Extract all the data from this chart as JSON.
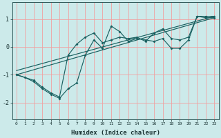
{
  "xlabel": "Humidex (Indice chaleur)",
  "ylabel": "",
  "bg_color": "#cceaea",
  "grid_color": "#f0a0a0",
  "line_color": "#1a6060",
  "xlim": [
    -0.5,
    23.5
  ],
  "ylim": [
    -2.6,
    1.6
  ],
  "yticks": [
    -2,
    -1,
    0,
    1
  ],
  "xticks": [
    0,
    1,
    2,
    3,
    4,
    5,
    6,
    7,
    8,
    9,
    10,
    11,
    12,
    13,
    14,
    15,
    16,
    17,
    18,
    19,
    20,
    21,
    22,
    23
  ],
  "line1_x": [
    0,
    1,
    2,
    3,
    4,
    5,
    6,
    7,
    8,
    9,
    10,
    11,
    12,
    13,
    14,
    15,
    16,
    17,
    18,
    19,
    20,
    21,
    22,
    23
  ],
  "line1_y": [
    -1.0,
    -1.1,
    -1.25,
    -1.5,
    -1.7,
    -1.85,
    -1.5,
    -1.3,
    -0.3,
    0.25,
    -0.05,
    0.75,
    0.55,
    0.2,
    0.3,
    0.25,
    0.2,
    0.3,
    -0.05,
    -0.05,
    0.25,
    1.1,
    1.1,
    1.1
  ],
  "line2_x": [
    0,
    2,
    3,
    4,
    5,
    6,
    7,
    8,
    9,
    10,
    11,
    12,
    13,
    14,
    15,
    16,
    17,
    18,
    19,
    20,
    21,
    22,
    23
  ],
  "line2_y": [
    -1.0,
    -1.2,
    -1.45,
    -1.65,
    -1.8,
    -0.3,
    0.1,
    0.35,
    0.5,
    0.15,
    0.25,
    0.35,
    0.3,
    0.35,
    0.2,
    0.5,
    0.65,
    0.3,
    0.25,
    0.35,
    1.1,
    1.05,
    1.05
  ],
  "line3_x": [
    0,
    23
  ],
  "line3_y": [
    -1.0,
    1.05
  ],
  "line4_x": [
    0,
    23
  ],
  "line4_y": [
    -0.85,
    1.1
  ]
}
